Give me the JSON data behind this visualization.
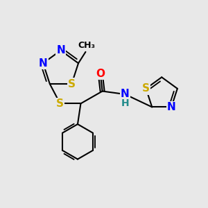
{
  "bg_color": "#e8e8e8",
  "atom_colors": {
    "C": "#000000",
    "N": "#0000ff",
    "O": "#ff0000",
    "S": "#ccaa00",
    "H": "#228b8b"
  },
  "bond_lw": 1.5,
  "font_size": 11
}
